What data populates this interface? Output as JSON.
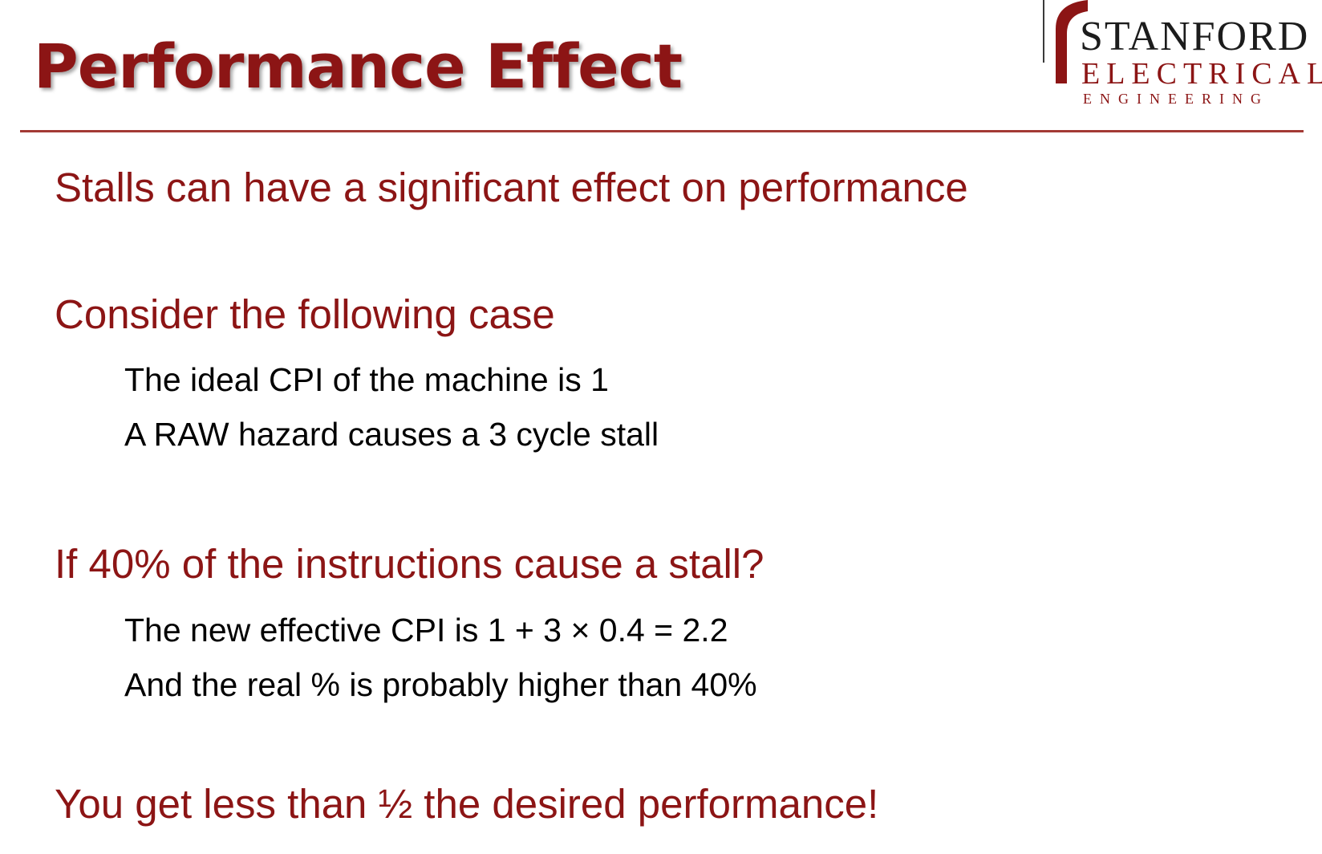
{
  "slide": {
    "title": "Performance Effect"
  },
  "logo": {
    "line1": "STANFORD",
    "line2": "ELECTRICAL",
    "line3": "ENGINEERING"
  },
  "content": {
    "bullet1": "Stalls can have a significant effect on performance",
    "bullet2": "Consider the following case",
    "bullet2_sub": [
      "The ideal CPI of the machine is 1",
      "A RAW hazard causes a 3 cycle stall"
    ],
    "bullet3": "If 40% of the instructions cause a stall?",
    "bullet3_sub": [
      "The new effective CPI is 1 + 3 × 0.4 = 2.2",
      "And the real % is probably higher than 40%"
    ],
    "bullet4": "You get less than ½ the desired performance!"
  },
  "colors": {
    "accent": "#8c1515",
    "rule": "#a33a35",
    "body_text": "#000000"
  }
}
